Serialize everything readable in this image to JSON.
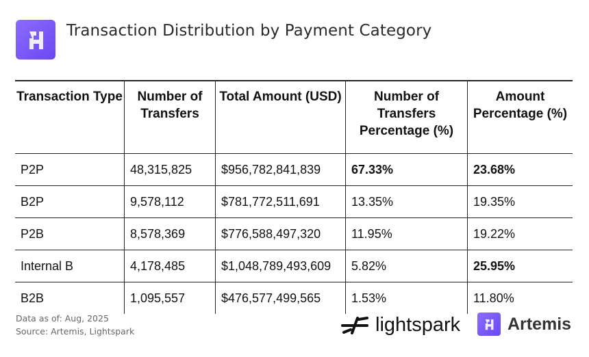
{
  "header": {
    "title": "Transaction Distribution by Payment Category",
    "logo_icon": "artemis-logo-icon"
  },
  "table": {
    "columns": [
      "Transaction Type",
      "Number of Transfers",
      "Total Amount (USD)",
      "Number of Transfers Percentage (%)",
      "Amount Percentage (%)"
    ],
    "rows": [
      {
        "type": "P2P",
        "transfers": "48,315,825",
        "amount": "$956,782,841,839",
        "transfers_pct": "67.33%",
        "amount_pct": "23.68%",
        "bold": [
          3,
          4
        ]
      },
      {
        "type": "B2P",
        "transfers": "9,578,112",
        "amount": "$781,772,511,691",
        "transfers_pct": "13.35%",
        "amount_pct": "19.35%",
        "bold": []
      },
      {
        "type": "P2B",
        "transfers": "8,578,369",
        "amount": "$776,588,497,320",
        "transfers_pct": "11.95%",
        "amount_pct": "19.22%",
        "bold": []
      },
      {
        "type": "Internal B",
        "transfers": "4,178,485",
        "amount": "$1,048,789,493,609",
        "transfers_pct": "5.82%",
        "amount_pct": "25.95%",
        "bold": [
          4
        ]
      },
      {
        "type": "B2B",
        "transfers": "1,095,557",
        "amount": "$476,577,499,565",
        "transfers_pct": "1.53%",
        "amount_pct": "11.80%",
        "bold": []
      }
    ]
  },
  "footer": {
    "data_as_of": "Data as of: Aug, 2025",
    "source": "Source: Artemis, Lightspark",
    "brand1": "lightspark",
    "brand2": "Artemis"
  },
  "colors": {
    "brand_purple": "#7357f5"
  }
}
